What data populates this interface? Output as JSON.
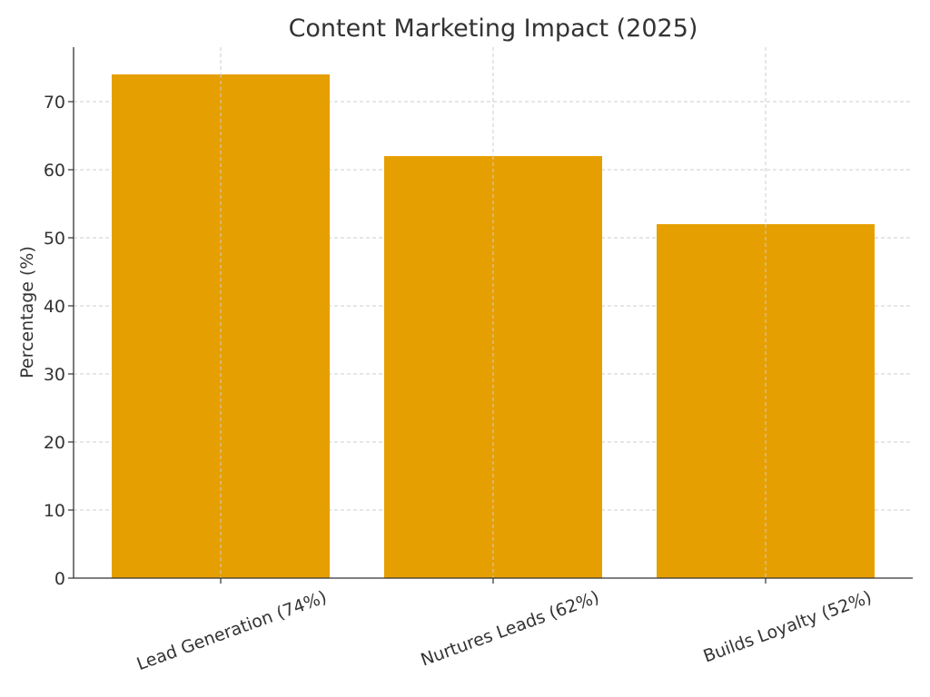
{
  "chart_data": {
    "type": "bar",
    "title": "Content Marketing Impact (2025)",
    "xlabel": "",
    "ylabel": "Percentage (%)",
    "categories": [
      "Lead Generation (74%)",
      "Nurtures Leads (62%)",
      "Builds Loyalty (52%)"
    ],
    "values": [
      74,
      62,
      52
    ],
    "ylim": [
      0,
      78
    ],
    "yticks": [
      0,
      10,
      20,
      30,
      40,
      50,
      60,
      70
    ],
    "bar_color": "#e69f00",
    "grid": true,
    "legend": "none"
  }
}
